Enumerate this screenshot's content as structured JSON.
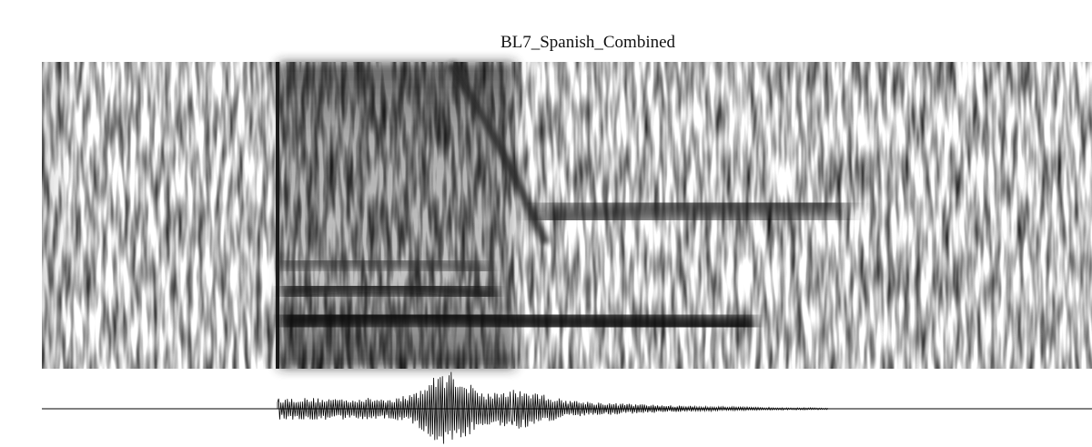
{
  "title": "BL7_Spanish_Combined"
}
